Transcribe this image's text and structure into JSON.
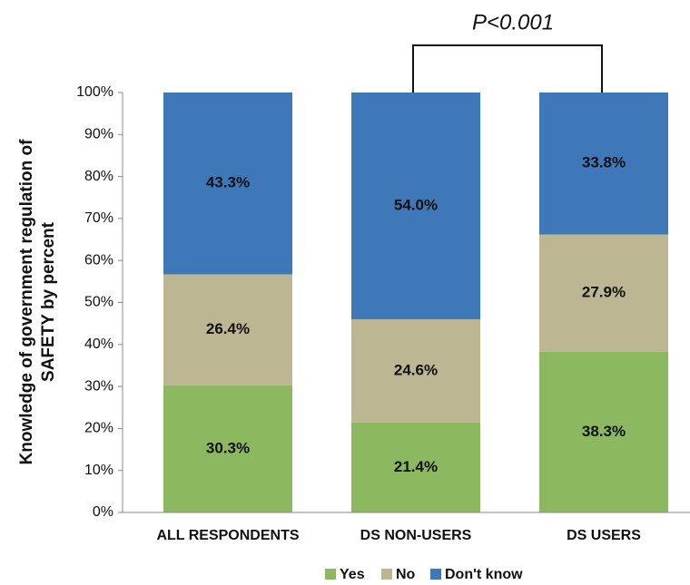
{
  "chart_data": {
    "type": "stacked_bar",
    "annotation": "P<0.001",
    "ylabel": [
      "Knowledge of government regulation of",
      "SAFETY by percent"
    ],
    "categories": [
      "ALL RESPONDENTS",
      "DS NON-USERS",
      "DS USERS"
    ],
    "series": [
      {
        "name": "Yes",
        "color": "#8cb860",
        "values": [
          30.3,
          21.4,
          38.3
        ],
        "value_labels": [
          "30.3%",
          "21.4%",
          "38.3%"
        ]
      },
      {
        "name": "No",
        "color": "#bcb792",
        "values": [
          26.4,
          24.6,
          27.9
        ],
        "value_labels": [
          "26.4%",
          "24.6%",
          "27.9%"
        ]
      },
      {
        "name": "Don't know",
        "color": "#3f78b9",
        "values": [
          43.3,
          54.0,
          33.8
        ],
        "value_labels": [
          "43.3%",
          "54.0%",
          "33.8%"
        ]
      }
    ],
    "ylim": [
      0,
      100
    ],
    "yticks": [
      {
        "value": 0,
        "label": "0%"
      },
      {
        "value": 10,
        "label": "10%"
      },
      {
        "value": 20,
        "label": "20%"
      },
      {
        "value": 30,
        "label": "30%"
      },
      {
        "value": 40,
        "label": "40%"
      },
      {
        "value": 50,
        "label": "50%"
      },
      {
        "value": 60,
        "label": "60%"
      },
      {
        "value": 70,
        "label": "70%"
      },
      {
        "value": 80,
        "label": "80%"
      },
      {
        "value": 90,
        "label": "90%"
      },
      {
        "value": 100,
        "label": "100%"
      }
    ],
    "legend": "bottom"
  }
}
